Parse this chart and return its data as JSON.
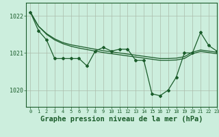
{
  "title": "Graphe pression niveau de la mer (hPa)",
  "background_color": "#cceedd",
  "plot_bg_color": "#cceedd",
  "grid_color": "#aabbaa",
  "line_color": "#1a5c2a",
  "title_fontsize": 7.5,
  "xlim": [
    -0.5,
    23
  ],
  "ylim": [
    1019.55,
    1022.35
  ],
  "yticks": [
    1020,
    1021,
    1022
  ],
  "xticks": [
    0,
    1,
    2,
    3,
    4,
    5,
    6,
    7,
    8,
    9,
    10,
    11,
    12,
    13,
    14,
    15,
    16,
    17,
    18,
    19,
    20,
    21,
    22,
    23
  ],
  "series_main": [
    1022.1,
    1021.6,
    1021.35,
    1020.85,
    1020.85,
    1020.85,
    1020.85,
    1020.65,
    1021.05,
    1021.15,
    1021.05,
    1021.1,
    1021.1,
    1020.8,
    1020.8,
    1019.9,
    1019.85,
    1020.0,
    1020.35,
    1021.0,
    1021.0,
    1021.55,
    1021.2,
    1021.05
  ],
  "series_smooth1": [
    1022.1,
    1021.72,
    1021.52,
    1021.38,
    1021.28,
    1021.22,
    1021.18,
    1021.14,
    1021.1,
    1021.06,
    1021.03,
    1021.0,
    1020.97,
    1020.94,
    1020.91,
    1020.88,
    1020.85,
    1020.85,
    1020.86,
    1020.9,
    1021.02,
    1021.08,
    1021.05,
    1021.02
  ],
  "series_smooth2": [
    1022.1,
    1021.72,
    1021.5,
    1021.35,
    1021.25,
    1021.18,
    1021.13,
    1021.09,
    1021.05,
    1021.01,
    1020.98,
    1020.95,
    1020.92,
    1020.89,
    1020.86,
    1020.83,
    1020.8,
    1020.8,
    1020.81,
    1020.85,
    1020.98,
    1021.04,
    1021.01,
    1020.98
  ]
}
